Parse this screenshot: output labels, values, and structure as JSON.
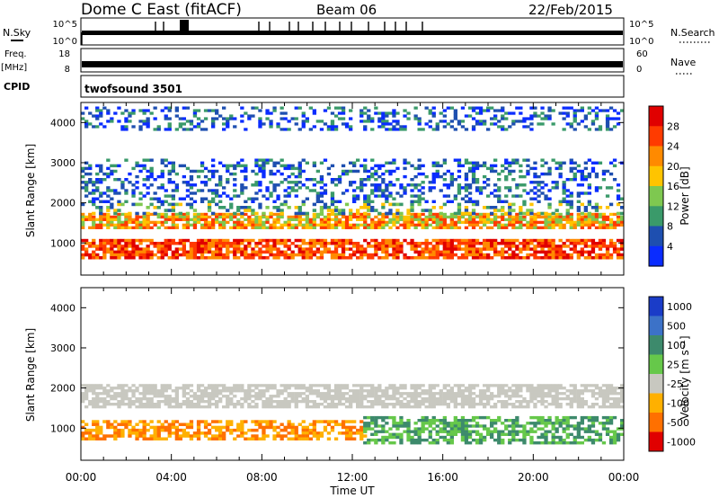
{
  "header": {
    "title": "Dome C East (fitACF)",
    "beam": "Beam 06",
    "date": "22/Feb/2015"
  },
  "strip_panels": {
    "nsky_label": "N.Sky",
    "nsky_ticks": [
      "10^5",
      "10^0"
    ],
    "nsearch_label": "N.Search",
    "nsearch_ticks": [
      "10^5",
      "10^0"
    ],
    "freq_label_line1": "Freq.",
    "freq_label_line2": "[MHz]",
    "freq_ticks": [
      "18",
      "8"
    ],
    "nave_label": "Nave",
    "nave_ticks": [
      "60",
      "0"
    ],
    "cpid_label": "CPID",
    "cpid_value": "twofsound 3501"
  },
  "chart_data": [
    {
      "type": "heatmap",
      "name": "power",
      "ylabel": "Slant Range [km]",
      "colorbar_label": "Power [dB]",
      "ylim": [
        200,
        4500
      ],
      "y_ticks": [
        1000,
        2000,
        3000,
        4000
      ],
      "colorbar_ticks": [
        "28",
        "24",
        "20",
        "16",
        "12",
        "8",
        "4"
      ],
      "colorbar_colors": [
        "#e00000",
        "#ff3b00",
        "#ff8a00",
        "#ffc400",
        "#7ec850",
        "#3a9a6a",
        "#1e4fb0",
        "#0a2cff"
      ],
      "bands": [
        {
          "range": [
            1350,
            1750
          ],
          "level": 20
        },
        {
          "range": [
            600,
            1100
          ],
          "level": 26
        },
        {
          "range": [
            1700,
            2000
          ],
          "level": 10
        },
        {
          "range": [
            2000,
            3100
          ],
          "level": 6
        },
        {
          "range": [
            3800,
            4400
          ],
          "level": 5
        }
      ]
    },
    {
      "type": "heatmap",
      "name": "velocity",
      "ylabel": "Slant Range [km]",
      "colorbar_label": "Velocity [m s⁻¹]",
      "ylim": [
        200,
        4500
      ],
      "y_ticks": [
        1000,
        2000,
        3000,
        4000
      ],
      "colorbar_ticks": [
        "1000",
        "500",
        "100",
        "25",
        "-25",
        "-100",
        "-500",
        "-1000"
      ],
      "colorbar_colors": [
        "#1a3cc8",
        "#3c72c8",
        "#3d8a6c",
        "#66c84a",
        "#c8c8c0",
        "#ffb000",
        "#ff7000",
        "#e00000"
      ],
      "bands": [
        {
          "range": [
            1500,
            2100
          ],
          "level": 0
        },
        {
          "range": [
            700,
            1200
          ],
          "level": -300
        },
        {
          "range": [
            600,
            1300
          ],
          "level": 200
        }
      ]
    }
  ],
  "x_axis": {
    "label": "Time UT",
    "ticks": [
      "00:00",
      "04:00",
      "08:00",
      "12:00",
      "16:00",
      "20:00",
      "00:00"
    ]
  }
}
